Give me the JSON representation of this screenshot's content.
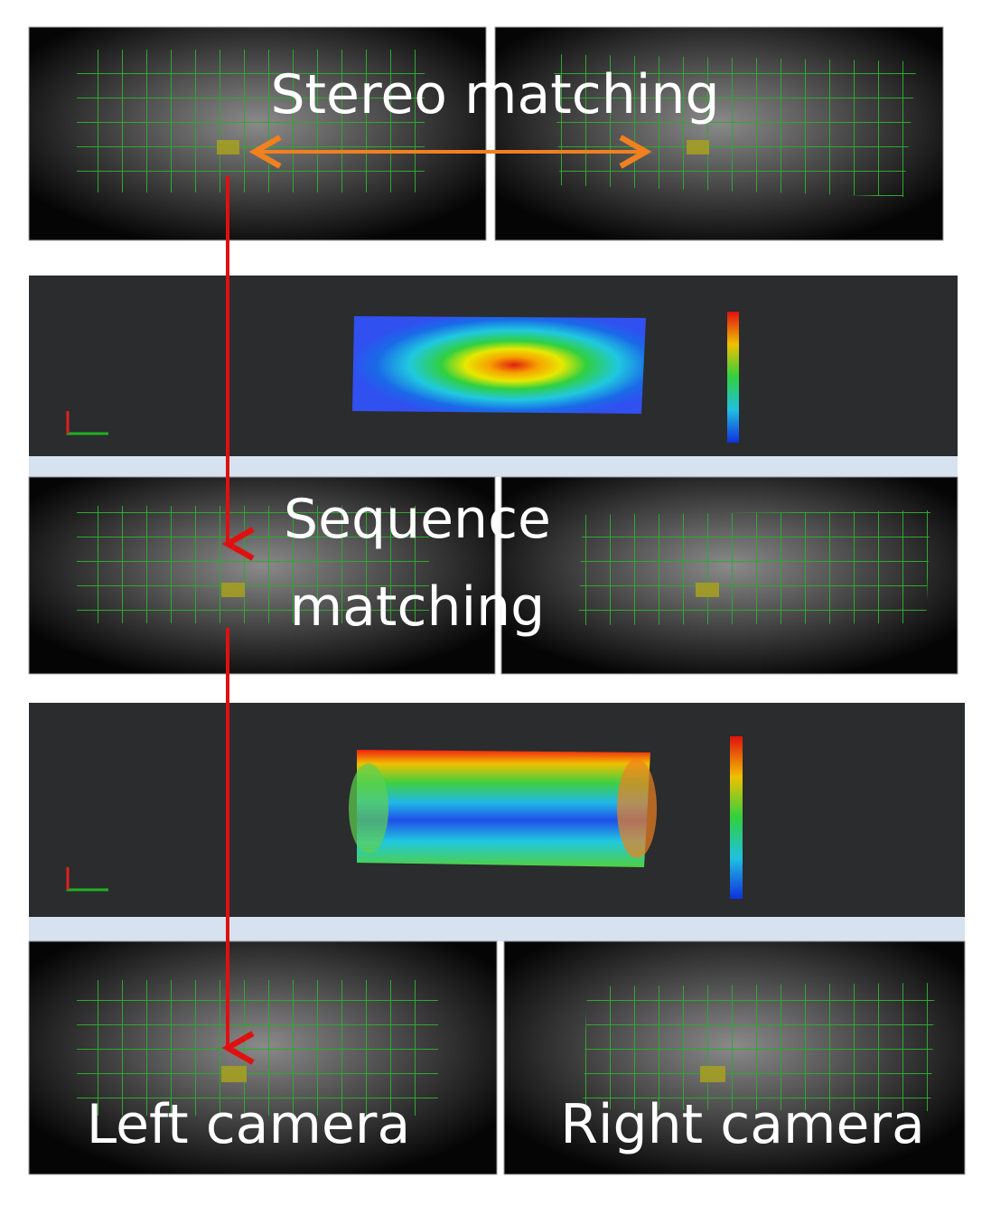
{
  "labels": {
    "stereo": "Stereo matching",
    "sequence": [
      "Sequence",
      "matching"
    ],
    "left": "Left camera",
    "right": "Right camera"
  }
}
